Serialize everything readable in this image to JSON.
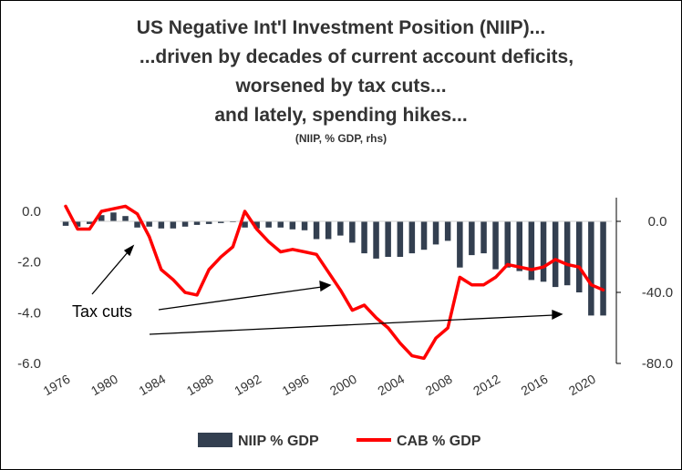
{
  "title_lines": [
    "US Negative Int'l Investment Position (NIIP)...",
    "...driven by decades of current account deficits,",
    "worsened by tax cuts...",
    "and lately, spending hikes...",
    "(NIIP, % GDP, rhs)"
  ],
  "annotation": "Tax cuts",
  "colors": {
    "niip_bar": "#333f50",
    "cab_line": "#ff0000",
    "text": "#333333"
  },
  "chart_data": {
    "type": "bar",
    "years": [
      1976,
      1977,
      1978,
      1979,
      1980,
      1981,
      1982,
      1983,
      1984,
      1985,
      1986,
      1987,
      1988,
      1989,
      1990,
      1991,
      1992,
      1993,
      1994,
      1995,
      1996,
      1997,
      1998,
      1999,
      2000,
      2001,
      2002,
      2003,
      2004,
      2005,
      2006,
      2007,
      2008,
      2009,
      2010,
      2011,
      2012,
      2013,
      2014,
      2015,
      2016,
      2017,
      2018,
      2019,
      2020,
      2021
    ],
    "x_tick_labels": [
      "1976",
      "1980",
      "1984",
      "1988",
      "1992",
      "1996",
      "2000",
      "2004",
      "2008",
      "2012",
      "2016",
      "2020"
    ],
    "series": [
      {
        "name": "NIIP % GDP",
        "kind": "bar",
        "axis": "right",
        "values": [
          -2.5,
          -3,
          -1.5,
          3.5,
          5,
          3,
          -3.5,
          -3,
          -4,
          -4,
          -3,
          -2,
          -1.5,
          -1,
          -0.5,
          -3.5,
          -4,
          -3.5,
          -3.5,
          -4.5,
          -5,
          -10,
          -10,
          -8,
          -12,
          -18,
          -21,
          -20,
          -20,
          -18,
          -16,
          -13,
          -11,
          -26,
          -19,
          -18,
          -27,
          -26,
          -28,
          -33,
          -34,
          -37,
          -36,
          -40,
          -53,
          -53
        ]
      },
      {
        "name": "CAB % GDP",
        "kind": "line",
        "axis": "left",
        "values": [
          0.2,
          -0.7,
          -0.7,
          0.0,
          0.1,
          0.2,
          -0.1,
          -1.0,
          -2.3,
          -2.7,
          -3.2,
          -3.3,
          -2.3,
          -1.8,
          -1.4,
          0.0,
          -0.7,
          -1.2,
          -1.6,
          -1.5,
          -1.6,
          -1.7,
          -2.4,
          -3.1,
          -3.9,
          -3.7,
          -4.2,
          -4.6,
          -5.2,
          -5.7,
          -5.8,
          -5.0,
          -4.6,
          -2.6,
          -2.9,
          -2.9,
          -2.6,
          -2.1,
          -2.2,
          -2.3,
          -2.2,
          -1.9,
          -2.1,
          -2.2,
          -2.9,
          -3.1
        ]
      }
    ],
    "left_axis": {
      "ylim": [
        -6.0,
        0.0
      ],
      "ticks": [
        "0.0",
        "-2.0",
        "-4.0",
        "-6.0"
      ]
    },
    "right_axis": {
      "ylim": [
        -80.0,
        0.0
      ],
      "ticks": [
        "0.0",
        "-40.0",
        "-80.0"
      ]
    },
    "legend": [
      "NIIP % GDP",
      "CAB % GDP"
    ],
    "legend_position": "bottom",
    "grid": false
  }
}
